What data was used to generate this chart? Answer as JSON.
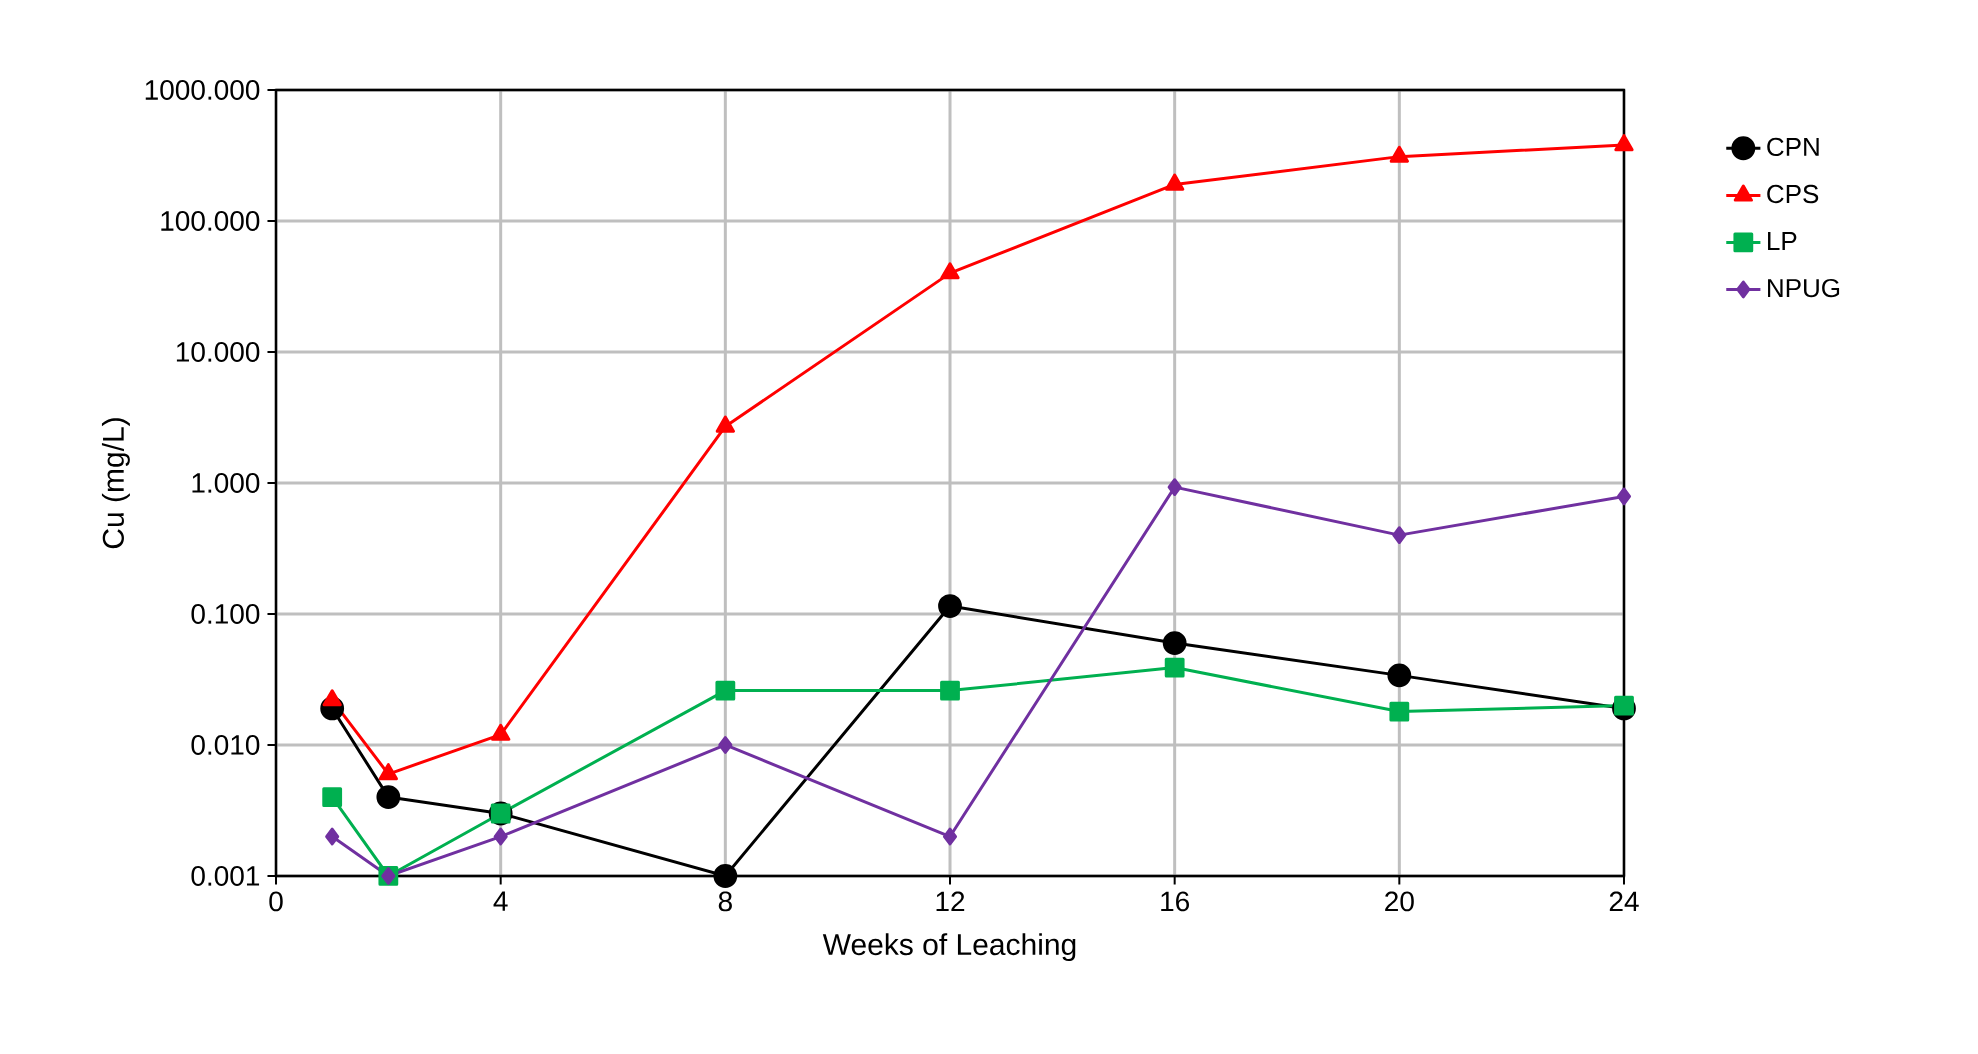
{
  "chart_data": {
    "type": "line",
    "xlabel": "Weeks of Leaching",
    "ylabel": "Cu (mg/L)",
    "x": [
      1,
      2,
      4,
      8,
      12,
      16,
      20,
      24
    ],
    "xlim": [
      0,
      24
    ],
    "xticks": [
      0,
      4,
      8,
      12,
      16,
      20,
      24
    ],
    "ylim": [
      0.001,
      1000
    ],
    "log": "y",
    "yticks": [
      {
        "value": 0.001,
        "label": "0.001"
      },
      {
        "value": 0.01,
        "label": "0.010"
      },
      {
        "value": 0.1,
        "label": "0.100"
      },
      {
        "value": 1,
        "label": "1.000"
      },
      {
        "value": 10,
        "label": "10.000"
      },
      {
        "value": 100,
        "label": "100.000"
      },
      {
        "value": 1000,
        "label": "1000.000"
      }
    ],
    "grid": true,
    "legend": "right",
    "line_style": "solid",
    "series": [
      {
        "name": "CPN",
        "color": "#000000",
        "marker": "circle",
        "values": [
          0.019,
          0.004,
          0.003,
          0.001,
          0.115,
          0.06,
          0.034,
          0.019
        ]
      },
      {
        "name": "CPS",
        "color": "#ff0000",
        "marker": "triangle",
        "values": [
          0.022,
          0.006,
          0.012,
          2.7,
          40,
          190,
          310,
          380
        ]
      },
      {
        "name": "LP",
        "color": "#00b050",
        "marker": "square",
        "values": [
          0.004,
          0.001,
          0.003,
          0.026,
          0.026,
          0.039,
          0.018,
          0.02
        ]
      },
      {
        "name": "NPUG",
        "color": "#7030a0",
        "marker": "diamond",
        "values": [
          0.002,
          0.001,
          0.002,
          0.01,
          0.002,
          0.93,
          0.4,
          0.79
        ]
      }
    ]
  }
}
